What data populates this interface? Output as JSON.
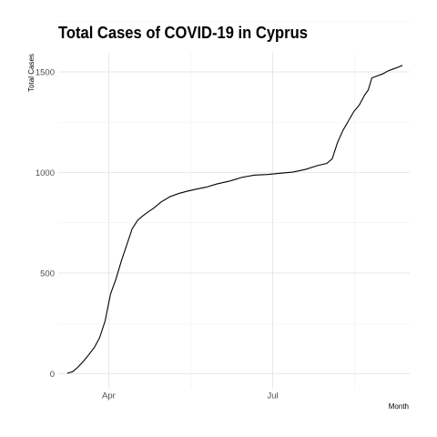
{
  "chart_data": {
    "type": "line",
    "title": "Total Cases of COVID-19 in Cyprus",
    "xlabel": "Month",
    "ylabel": "Total Cases",
    "x_ticks": [
      {
        "label": "Apr",
        "date": "2020-04-01"
      },
      {
        "label": "Jul",
        "date": "2020-07-01"
      }
    ],
    "y_ticks": [
      0,
      500,
      1000,
      1500
    ],
    "ylim": [
      -75,
      1595
    ],
    "xlim": [
      "2020-03-04",
      "2020-09-15"
    ],
    "grid": true,
    "legend": "none",
    "series": [
      {
        "x": [
          "2020-03-09",
          "2020-03-12",
          "2020-03-15",
          "2020-03-18",
          "2020-03-21",
          "2020-03-24",
          "2020-03-27",
          "2020-03-30",
          "2020-04-02",
          "2020-04-05",
          "2020-04-08",
          "2020-04-11",
          "2020-04-14",
          "2020-04-17",
          "2020-04-20",
          "2020-04-23",
          "2020-04-26",
          "2020-04-30",
          "2020-05-05",
          "2020-05-10",
          "2020-05-15",
          "2020-05-20",
          "2020-05-25",
          "2020-05-31",
          "2020-06-07",
          "2020-06-14",
          "2020-06-21",
          "2020-06-28",
          "2020-07-05",
          "2020-07-12",
          "2020-07-19",
          "2020-07-26",
          "2020-07-31",
          "2020-08-03",
          "2020-08-06",
          "2020-08-09",
          "2020-08-12",
          "2020-08-15",
          "2020-08-18",
          "2020-08-21",
          "2020-08-23",
          "2020-08-25",
          "2020-08-28",
          "2020-08-31",
          "2020-09-03",
          "2020-09-06",
          "2020-09-09",
          "2020-09-11"
        ],
        "y": [
          2,
          10,
          33,
          62,
          95,
          130,
          180,
          262,
          396,
          470,
          560,
          640,
          720,
          762,
          785,
          805,
          823,
          853,
          880,
          896,
          908,
          918,
          927,
          943,
          957,
          976,
          987,
          990,
          996,
          1002,
          1015,
          1035,
          1045,
          1068,
          1150,
          1210,
          1256,
          1303,
          1335,
          1385,
          1410,
          1470,
          1480,
          1490,
          1505,
          1515,
          1525,
          1533
        ]
      }
    ]
  }
}
